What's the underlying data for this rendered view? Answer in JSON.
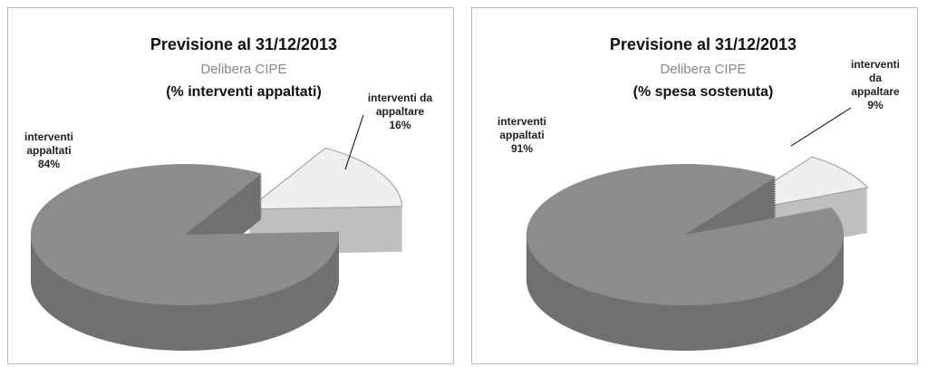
{
  "chart_data": [
    {
      "type": "pie",
      "title": "Previsione al 31/12/2013",
      "subtitle": [
        "Delibera CIPE",
        "(% interventi appaltati)"
      ],
      "categories": [
        "interventi appaltati",
        "interventi da appaltare"
      ],
      "values": [
        84,
        16
      ],
      "value_labels": [
        "84%",
        "16%"
      ],
      "colors": [
        "#8c8c8c",
        "#efefef"
      ]
    },
    {
      "type": "pie",
      "title": "Previsione al 31/12/2013",
      "subtitle": [
        "Delibera CIPE",
        "(% spesa sostenuta)"
      ],
      "categories": [
        "interventi appaltati",
        "interventi da appaltare"
      ],
      "values": [
        91,
        9
      ],
      "value_labels": [
        "91%",
        "9%"
      ],
      "colors": [
        "#8c8c8c",
        "#efefef"
      ]
    }
  ]
}
